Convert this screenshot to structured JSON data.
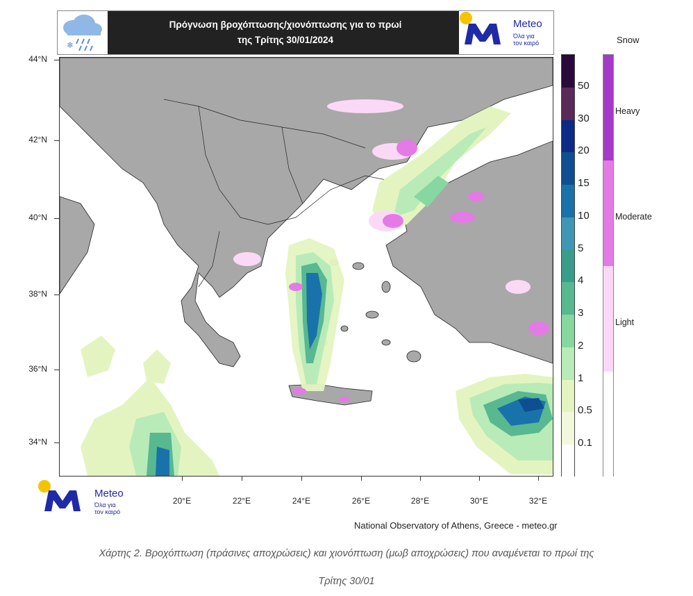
{
  "header": {
    "title_line1": "Πρόγνωση βροχόπτωσης/χιονόπτωσης για το πρωί",
    "title_line2": "της Τρίτης 30/01/2024"
  },
  "brand": {
    "name": "Meteo",
    "tagline_1": "Όλα για",
    "tagline_2": "τον καιρό"
  },
  "axes": {
    "latitudes": [
      "44°N",
      "42°N",
      "40°N",
      "38°N",
      "36°N",
      "34°N"
    ],
    "longitudes": [
      "20°E",
      "22°E",
      "24°E",
      "26°E",
      "28°E",
      "30°E",
      "32°E"
    ]
  },
  "precip_scale": {
    "labels": [
      "50",
      "30",
      "20",
      "15",
      "10",
      "5",
      "4",
      "3",
      "2",
      "1",
      "0.5",
      "0.1"
    ],
    "colors": [
      "#2a0a3a",
      "#5a2a58",
      "#0c2a86",
      "#0d4f90",
      "#1a72aa",
      "#3f97b5",
      "#3a9c8a",
      "#58b890",
      "#86d8a0",
      "#b8ebb8",
      "#e4f4c0",
      "#f2f8dc",
      "#ffffff"
    ]
  },
  "snow_scale": {
    "title": "Snow",
    "labels": [
      "Heavy",
      "Moderate",
      "Light"
    ],
    "colors": [
      "#a33ac8",
      "#e47ae6",
      "#fbd9f6",
      "#ffffff"
    ]
  },
  "footer": {
    "credit": "National Observatory of Athens, Greece - meteo.gr"
  },
  "caption": {
    "line1": "Χάρτης 2. Βροχόπτωση (πράσινες αποχρώσεις) και χιονόπτωση (μωβ αποχρώσεις) που αναμένεται το πρωί της",
    "line2": "Τρίτης 30/01"
  },
  "colors": {
    "land": "#a8a8a8",
    "sea": "#ffffff",
    "banner": "#222222",
    "brand_blue": "#1f2aa8",
    "brand_sun": "#f5c400"
  },
  "icons": [
    "rain-snow-cloud-icon",
    "meteo-logo-icon"
  ]
}
